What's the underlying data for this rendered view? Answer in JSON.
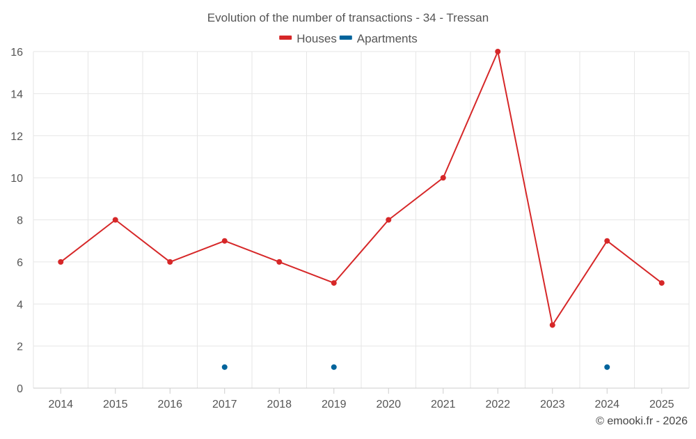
{
  "chart_data": {
    "type": "line",
    "title": "Evolution of the number of transactions - 34 - Tressan",
    "categories": [
      "2014",
      "2015",
      "2016",
      "2017",
      "2018",
      "2019",
      "2020",
      "2021",
      "2022",
      "2023",
      "2024",
      "2025"
    ],
    "ylim": [
      0,
      16
    ],
    "yticks": [
      0,
      2,
      4,
      6,
      8,
      10,
      12,
      14,
      16
    ],
    "grid": true,
    "legend_position": "top-center",
    "series": [
      {
        "name": "Houses",
        "color": "#d62728",
        "values": [
          6,
          8,
          6,
          7,
          6,
          5,
          8,
          10,
          16,
          3,
          7,
          5
        ]
      },
      {
        "name": "Apartments",
        "color": "#00649c",
        "values": [
          null,
          null,
          null,
          1,
          null,
          1,
          null,
          null,
          null,
          null,
          1,
          null
        ]
      }
    ]
  },
  "credit": "© emooki.fr - 2026"
}
